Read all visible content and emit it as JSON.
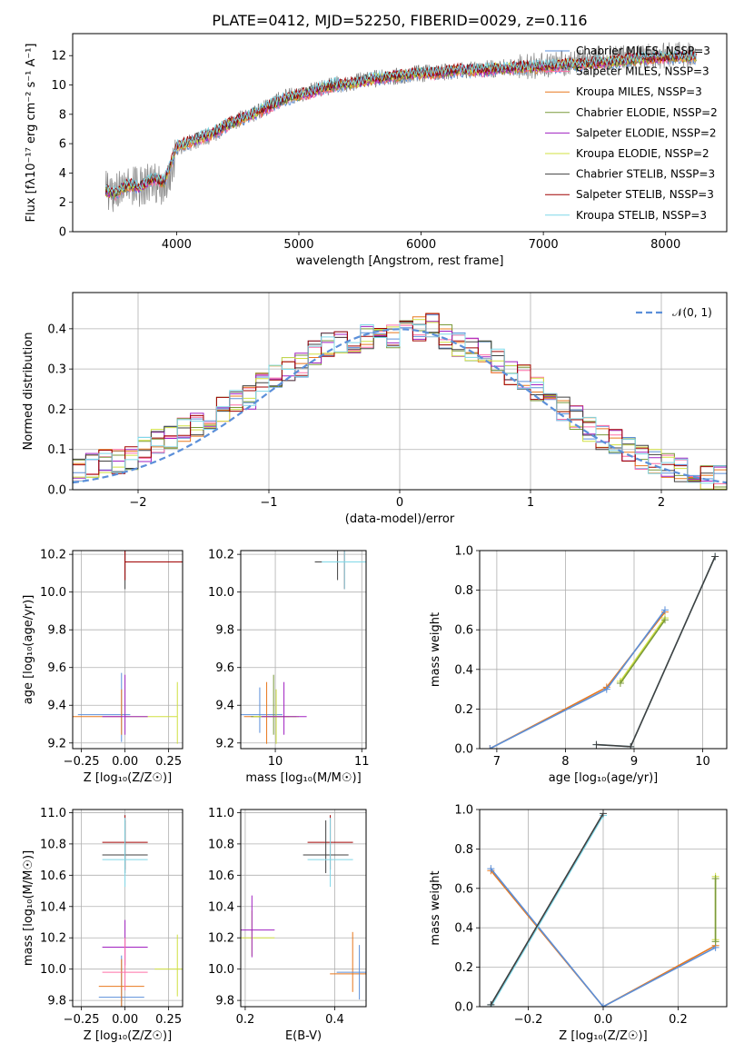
{
  "figure_title": "PLATE=0412, MJD=52250, FIBERID=0029, z=0.116",
  "colors": {
    "chabrier_miles": "#5b8fd9",
    "salpeter_miles": "#ff6fa8",
    "kroupa_miles": "#e8781e",
    "chabrier_elodie": "#7a9a3a",
    "salpeter_elodie": "#a020c0",
    "kroupa_elodie": "#d0e040",
    "chabrier_stelib": "#404040",
    "salpeter_stelib": "#a00000",
    "kroupa_stelib": "#7fd8e8",
    "data": "#808080",
    "normal": "#5b8fd9",
    "grid": "#b0b0b0"
  },
  "chart_data": [
    {
      "type": "line",
      "title": "PLATE=0412, MJD=52250, FIBERID=0029, z=0.116",
      "xlabel": "wavelength [Angstrom, rest frame]",
      "ylabel": "Flux [fλ10⁻¹⁷ erg cm⁻² s⁻¹ A⁻¹]",
      "xlim": [
        3150,
        8500
      ],
      "ylim": [
        0,
        13.5
      ],
      "xticks": [
        4000,
        5000,
        6000,
        7000,
        8000
      ],
      "yticks": [
        0,
        2,
        4,
        6,
        8,
        10,
        12
      ],
      "grid": false,
      "legend_position": "top-right",
      "legend": [
        {
          "label": "Chabrier MILES, NSSP=3",
          "color": "#5b8fd9"
        },
        {
          "label": "Salpeter MILES, NSSP=3",
          "color": "#ff6fa8"
        },
        {
          "label": "Kroupa MILES, NSSP=3",
          "color": "#e8781e"
        },
        {
          "label": "Chabrier ELODIE, NSSP=2",
          "color": "#7a9a3a"
        },
        {
          "label": "Salpeter ELODIE, NSSP=2",
          "color": "#a020c0"
        },
        {
          "label": "Kroupa ELODIE, NSSP=2",
          "color": "#d0e040"
        },
        {
          "label": "Chabrier STELIB, NSSP=3",
          "color": "#404040"
        },
        {
          "label": "Salpeter STELIB, NSSP=3",
          "color": "#a00000"
        },
        {
          "label": "Kroupa STELIB, NSSP=3",
          "color": "#7fd8e8"
        }
      ],
      "data_spectrum": {
        "x": [
          3420,
          3500,
          3600,
          3700,
          3800,
          3900,
          4000,
          4100,
          4200,
          4300,
          4400,
          4500,
          4600,
          4700,
          4800,
          4900,
          5000,
          5100,
          5200,
          5300,
          5400,
          5500,
          5600,
          5700,
          5800,
          5900,
          6000,
          6100,
          6200,
          6300,
          6400,
          6500,
          6600,
          6700,
          6800,
          6900,
          7000,
          7100,
          7200,
          7300,
          7400,
          7500,
          7600,
          7700,
          7800,
          7900,
          8000,
          8100,
          8250
        ],
        "y": [
          2.8,
          2.6,
          3.2,
          3.0,
          3.6,
          2.8,
          5.6,
          6.0,
          6.4,
          6.6,
          7.2,
          7.6,
          7.9,
          8.3,
          8.8,
          9.2,
          9.3,
          9.6,
          9.8,
          10.0,
          10.1,
          10.3,
          10.4,
          10.5,
          10.6,
          10.7,
          10.8,
          10.8,
          10.9,
          11.0,
          11.0,
          11.1,
          11.1,
          11.2,
          11.2,
          11.3,
          11.3,
          11.4,
          11.5,
          11.6,
          11.6,
          11.7,
          11.8,
          11.9,
          11.9,
          12.0,
          12.0,
          12.1,
          12.0
        ]
      },
      "model_spectrum": {
        "x": [
          3420,
          3500,
          3600,
          3700,
          3800,
          3900,
          4000,
          4100,
          4200,
          4300,
          4400,
          4500,
          4600,
          4700,
          4800,
          4900,
          5000,
          5100,
          5200,
          5300,
          5400,
          5500,
          5600,
          5700,
          5800,
          5900,
          6000,
          6100,
          6200,
          6300,
          6400,
          6500,
          6600,
          6700,
          6800,
          6900,
          7000,
          7100,
          7200,
          7300,
          7400,
          7500,
          7600,
          7700,
          7800,
          7900,
          8000,
          8100,
          8250
        ],
        "y": [
          2.8,
          2.6,
          3.2,
          3.0,
          3.6,
          3.4,
          5.8,
          6.1,
          6.4,
          6.7,
          7.2,
          7.6,
          7.9,
          8.3,
          8.7,
          9.1,
          9.3,
          9.5,
          9.8,
          10.0,
          10.1,
          10.2,
          10.4,
          10.5,
          10.6,
          10.7,
          10.8,
          10.8,
          10.9,
          11.0,
          11.0,
          11.0,
          11.1,
          11.1,
          11.2,
          11.2,
          11.2,
          11.3,
          11.4,
          11.4,
          11.5,
          11.5,
          11.6,
          11.7,
          11.8,
          11.8,
          11.9,
          11.9,
          11.9
        ]
      }
    },
    {
      "type": "histogram",
      "xlabel": "(data-model)/error",
      "ylabel": "Normed distribution",
      "xlim": [
        -2.5,
        2.5
      ],
      "ylim": [
        0,
        0.49
      ],
      "xticks": [
        -2,
        -1,
        0,
        1,
        2
      ],
      "yticks": [
        0.0,
        0.1,
        0.2,
        0.3,
        0.4
      ],
      "grid": true,
      "legend_position": "top-right",
      "legend": [
        {
          "label": "𝒩(0, 1)",
          "color": "#5b8fd9",
          "style": "dashed"
        }
      ],
      "bin_centers": [
        -2.45,
        -2.35,
        -2.25,
        -2.15,
        -2.05,
        -1.95,
        -1.85,
        -1.75,
        -1.65,
        -1.55,
        -1.45,
        -1.35,
        -1.25,
        -1.15,
        -1.05,
        -0.95,
        -0.85,
        -0.75,
        -0.65,
        -0.55,
        -0.45,
        -0.35,
        -0.25,
        -0.15,
        -0.05,
        0.05,
        0.15,
        0.25,
        0.35,
        0.45,
        0.55,
        0.65,
        0.75,
        0.85,
        0.95,
        1.05,
        1.15,
        1.25,
        1.35,
        1.45,
        1.55,
        1.65,
        1.75,
        1.85,
        1.95,
        2.05,
        2.15,
        2.25,
        2.35,
        2.45
      ],
      "envelope": [
        0.05,
        0.06,
        0.07,
        0.07,
        0.08,
        0.1,
        0.12,
        0.13,
        0.15,
        0.16,
        0.18,
        0.2,
        0.22,
        0.23,
        0.26,
        0.28,
        0.3,
        0.31,
        0.34,
        0.36,
        0.37,
        0.37,
        0.38,
        0.39,
        0.38,
        0.39,
        0.4,
        0.41,
        0.38,
        0.36,
        0.35,
        0.34,
        0.32,
        0.29,
        0.28,
        0.25,
        0.22,
        0.2,
        0.18,
        0.15,
        0.13,
        0.12,
        0.1,
        0.08,
        0.07,
        0.06,
        0.05,
        0.04,
        0.03,
        0.03
      ]
    },
    {
      "type": "scatter",
      "xlabel": "Z [log₁₀(Z/Z☉)]",
      "ylabel": "age  [log₁₀(age/yr)]",
      "xlim": [
        -0.3,
        0.33
      ],
      "ylim": [
        9.17,
        10.22
      ],
      "xticks": [
        -0.25,
        0.0,
        0.25
      ],
      "yticks": [
        9.2,
        9.4,
        9.6,
        9.8,
        10.0,
        10.2
      ],
      "grid": true,
      "points": [
        {
          "x": 0.0,
          "y": 10.16,
          "xerr": [
            0.0,
            0.0
          ],
          "color": "#404040"
        },
        {
          "x": 0.0,
          "y": 10.16,
          "xerr": [
            0.0,
            0.4
          ],
          "color": "#a00000"
        },
        {
          "x": -0.02,
          "y": 9.35,
          "xerr": [
            0.25,
            0.05
          ],
          "color": "#5b8fd9"
        },
        {
          "x": -0.02,
          "y": 9.34,
          "xerr": [
            0.3,
            0.0
          ],
          "color": "#e8781e"
        },
        {
          "x": 0.3,
          "y": 9.34,
          "xerr": [
            0.3,
            0.0
          ],
          "color": "#d0e040"
        },
        {
          "x": 0.0,
          "y": 9.34,
          "color": "#a020c0"
        }
      ]
    },
    {
      "type": "scatter",
      "xlabel": "mass [log₁₀(M/M☉)]",
      "xlim": [
        9.6,
        11.05
      ],
      "ylim": [
        9.17,
        10.22
      ],
      "xticks": [
        10,
        11
      ],
      "yticks": [
        9.2,
        9.4,
        9.6,
        9.8,
        10.0,
        10.2
      ],
      "grid": true,
      "points": [
        {
          "x": 10.8,
          "y": 10.16,
          "color": "#a00000"
        },
        {
          "x": 10.72,
          "y": 10.16,
          "color": "#404040"
        },
        {
          "x": 10.8,
          "y": 10.16,
          "color": "#7fd8e8"
        },
        {
          "x": 9.82,
          "y": 9.35,
          "color": "#5b8fd9"
        },
        {
          "x": 9.9,
          "y": 9.34,
          "color": "#e8781e"
        },
        {
          "x": 9.98,
          "y": 9.34,
          "color": "#7a9a3a"
        },
        {
          "x": 10.01,
          "y": 9.34,
          "color": "#d0e040"
        },
        {
          "x": 10.1,
          "y": 9.34,
          "color": "#a020c0"
        }
      ]
    },
    {
      "type": "line",
      "xlabel": "age  [log₁₀(age/yr)]",
      "ylabel": "mass weight",
      "xlim": [
        6.75,
        10.35
      ],
      "ylim": [
        0.0,
        1.0
      ],
      "xticks": [
        7,
        8,
        9,
        10
      ],
      "yticks": [
        0.0,
        0.2,
        0.4,
        0.6,
        0.8,
        1.0
      ],
      "grid": true,
      "series": [
        {
          "color": "#e8781e",
          "x": [
            6.9,
            8.6,
            9.45
          ],
          "y": [
            0.0,
            0.31,
            0.69
          ]
        },
        {
          "color": "#5b8fd9",
          "x": [
            6.9,
            8.6,
            9.45
          ],
          "y": [
            0.0,
            0.3,
            0.7
          ]
        },
        {
          "color": "#d0e040",
          "x": [
            8.8,
            9.45
          ],
          "y": [
            0.34,
            0.66
          ]
        },
        {
          "color": "#7a9a3a",
          "x": [
            8.8,
            9.45
          ],
          "y": [
            0.33,
            0.65
          ]
        },
        {
          "color": "#7fd8e8",
          "x": [
            8.45,
            8.95,
            10.18
          ],
          "y": [
            0.02,
            0.01,
            0.97
          ]
        },
        {
          "color": "#404040",
          "x": [
            8.45,
            8.95,
            10.18
          ],
          "y": [
            0.02,
            0.01,
            0.97
          ]
        }
      ]
    },
    {
      "type": "scatter",
      "xlabel": "Z [log₁₀(Z/Z☉)]",
      "ylabel": "mass [log₁₀(M/M☉)]",
      "xlim": [
        -0.3,
        0.33
      ],
      "ylim": [
        9.76,
        11.02
      ],
      "xticks": [
        -0.25,
        0.0,
        0.25
      ],
      "yticks": [
        9.8,
        10.0,
        10.2,
        10.4,
        10.6,
        10.8,
        11.0
      ],
      "grid": true,
      "points": [
        {
          "x": 0.0,
          "y": 10.81,
          "color": "#a00000"
        },
        {
          "x": 0.0,
          "y": 10.73,
          "color": "#404040"
        },
        {
          "x": 0.0,
          "y": 10.7,
          "color": "#7fd8e8"
        },
        {
          "x": 0.0,
          "y": 10.14,
          "color": "#a020c0"
        },
        {
          "x": 0.3,
          "y": 10.0,
          "color": "#d0e040"
        },
        {
          "x": -0.02,
          "y": 9.82,
          "color": "#5b8fd9"
        },
        {
          "x": -0.02,
          "y": 9.89,
          "color": "#e8781e"
        },
        {
          "x": 0.0,
          "y": 9.98,
          "color": "#ff6fa8"
        }
      ]
    },
    {
      "type": "scatter",
      "xlabel": "E(B-V)",
      "xlim": [
        0.19,
        0.47
      ],
      "ylim": [
        9.76,
        11.02
      ],
      "xticks": [
        0.2,
        0.4
      ],
      "yticks": [
        9.8,
        10.0,
        10.2,
        10.4,
        10.6,
        10.8,
        11.0
      ],
      "grid": true,
      "points": [
        {
          "x": 0.39,
          "y": 10.81,
          "color": "#a00000"
        },
        {
          "x": 0.38,
          "y": 10.73,
          "color": "#404040"
        },
        {
          "x": 0.39,
          "y": 10.7,
          "color": "#7fd8e8"
        },
        {
          "x": 0.215,
          "y": 10.2,
          "color": "#d0e040"
        },
        {
          "x": 0.215,
          "y": 10.25,
          "color": "#a020c0"
        },
        {
          "x": 0.44,
          "y": 9.97,
          "color": "#e8781e"
        },
        {
          "x": 0.455,
          "y": 9.98,
          "color": "#5b8fd9"
        }
      ]
    },
    {
      "type": "line",
      "xlabel": "Z [log₁₀(Z/Z☉)]",
      "ylabel": "mass weight",
      "xlim": [
        -0.33,
        0.33
      ],
      "ylim": [
        0.0,
        1.0
      ],
      "xticks": [
        -0.2,
        0.0,
        0.2
      ],
      "yticks": [
        0.0,
        0.2,
        0.4,
        0.6,
        0.8,
        1.0
      ],
      "grid": true,
      "series": [
        {
          "color": "#e8781e",
          "x": [
            -0.3,
            0.0,
            0.3
          ],
          "y": [
            0.69,
            0.0,
            0.31
          ]
        },
        {
          "color": "#5b8fd9",
          "x": [
            -0.3,
            0.0,
            0.3
          ],
          "y": [
            0.7,
            0.0,
            0.3
          ]
        },
        {
          "color": "#7fd8e8",
          "x": [
            -0.3,
            0.0,
            0.0,
            -0.3
          ],
          "y": [
            0.01,
            0.97,
            0.97,
            0.0
          ]
        },
        {
          "color": "#404040",
          "x": [
            -0.3,
            0.0
          ],
          "y": [
            0.01,
            0.98
          ]
        },
        {
          "color": "#d0e040",
          "x": [
            0.3,
            0.3
          ],
          "y": [
            0.34,
            0.66
          ]
        },
        {
          "color": "#7a9a3a",
          "x": [
            0.3,
            0.3
          ],
          "y": [
            0.33,
            0.65
          ]
        }
      ]
    }
  ]
}
